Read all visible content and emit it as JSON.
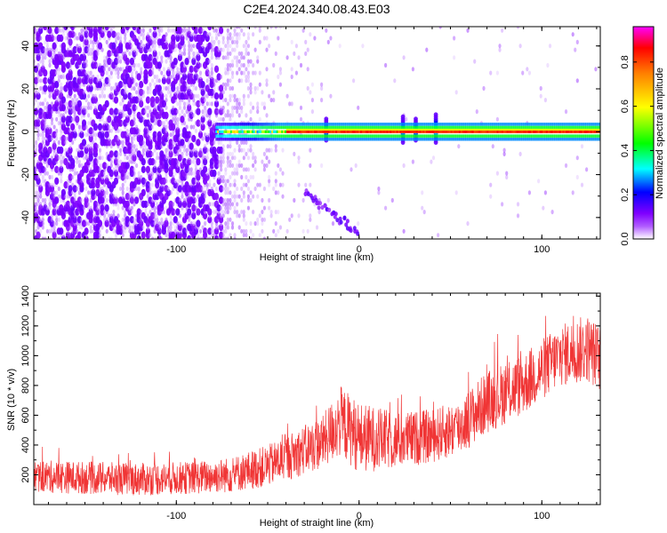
{
  "figure_title": "C2E4.2024.340.08.43.E03",
  "chart_data": [
    {
      "type": "heatmap",
      "title": "",
      "xlabel": "Height of straight line (km)",
      "ylabel": "Frequency (Hz)",
      "xlim": [
        -178,
        132
      ],
      "ylim": [
        -50,
        49
      ],
      "xticks": [
        -100,
        0,
        100
      ],
      "yticks": [
        -40,
        -20,
        0,
        20,
        40
      ],
      "colorbar": {
        "label": "Normalized spectral amplitude",
        "range": [
          0.0,
          0.96
        ],
        "ticks": [
          0.0,
          0.2,
          0.4,
          0.6,
          0.8
        ],
        "colormap": [
          "#ffffff",
          "#7f00ff",
          "#0000ff",
          "#00ffff",
          "#00ff00",
          "#ffff00",
          "#ff7f00",
          "#ff0000",
          "#ff00ff"
        ]
      },
      "features": {
        "ridge": {
          "frequency": 0,
          "x_start": -78,
          "x_end": 132,
          "amplitude": 0.9
        },
        "bursts": [
          {
            "x": -18,
            "freq_span": [
              -4,
              6
            ],
            "amplitude": 0.35
          },
          {
            "x": 24,
            "freq_span": [
              -5,
              7
            ],
            "amplitude": 0.35
          },
          {
            "x": 31,
            "freq_span": [
              -4,
              6
            ],
            "amplitude": 0.35
          },
          {
            "x": 42,
            "freq_span": [
              -5,
              8
            ],
            "amplitude": 0.4
          }
        ],
        "diagonal_streak": {
          "x": [
            -30,
            -1
          ],
          "freq": [
            -28,
            -47
          ],
          "amplitude": 0.15
        },
        "noise_region": {
          "x": [
            -178,
            -70
          ],
          "amplitude": 0.12
        }
      }
    },
    {
      "type": "line",
      "title": "",
      "xlabel": "Height of straight line (km)",
      "ylabel": "SNR (10 * v/v)",
      "xlim": [
        -178,
        132
      ],
      "ylim": [
        0,
        1420
      ],
      "xticks": [
        -100,
        0,
        100
      ],
      "yticks": [
        200,
        400,
        600,
        800,
        1000,
        1200,
        1400
      ],
      "series": [
        {
          "color": "#f03535",
          "envelope_x": [
            -178,
            -150,
            -120,
            -90,
            -70,
            -50,
            -20,
            -10,
            0,
            20,
            40,
            55,
            70,
            90,
            110,
            125,
            132
          ],
          "envelope_mean": [
            190,
            180,
            170,
            180,
            200,
            260,
            420,
            560,
            450,
            430,
            460,
            520,
            690,
            810,
            1000,
            1050,
            980
          ],
          "envelope_spread": [
            110,
            110,
            110,
            110,
            120,
            140,
            180,
            240,
            240,
            190,
            180,
            190,
            210,
            210,
            210,
            230,
            220
          ],
          "peak_max": 1390
        }
      ]
    }
  ]
}
